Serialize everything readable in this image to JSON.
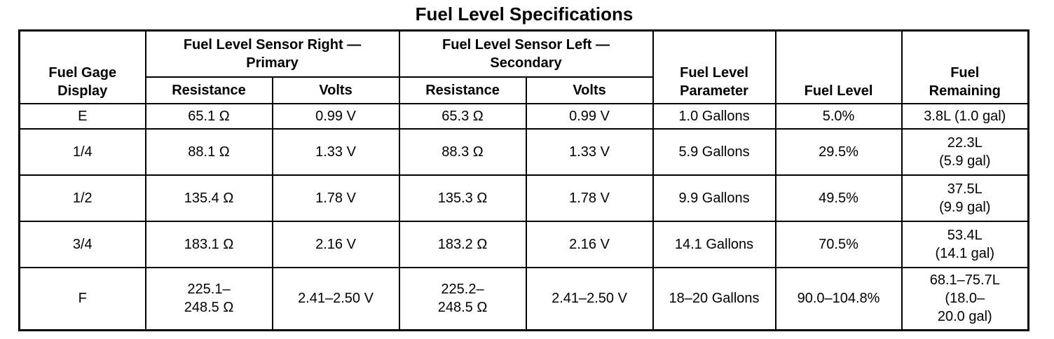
{
  "title": "Fuel Level Specifications",
  "headers": {
    "display": "Fuel Gage\nDisplay",
    "sensor_right": "Fuel Level Sensor Right —\nPrimary",
    "sensor_left": "Fuel Level Sensor Left —\nSecondary",
    "parameter": "Fuel Level\nParameter",
    "level": "Fuel Level",
    "remaining": "Fuel\nRemaining",
    "resistance": "Resistance",
    "volts": "Volts"
  },
  "rows": [
    {
      "display": "E",
      "right_resistance": "65.1 Ω",
      "right_volts": "0.99 V",
      "left_resistance": "65.3 Ω",
      "left_volts": "0.99 V",
      "parameter": "1.0 Gallons",
      "level": "5.0%",
      "remaining": "3.8L (1.0 gal)"
    },
    {
      "display": "1/4",
      "right_resistance": "88.1 Ω",
      "right_volts": "1.33 V",
      "left_resistance": "88.3 Ω",
      "left_volts": "1.33 V",
      "parameter": "5.9 Gallons",
      "level": "29.5%",
      "remaining": "22.3L\n(5.9 gal)"
    },
    {
      "display": "1/2",
      "right_resistance": "135.4 Ω",
      "right_volts": "1.78 V",
      "left_resistance": "135.3 Ω",
      "left_volts": "1.78 V",
      "parameter": "9.9 Gallons",
      "level": "49.5%",
      "remaining": "37.5L\n(9.9 gal)"
    },
    {
      "display": "3/4",
      "right_resistance": "183.1 Ω",
      "right_volts": "2.16 V",
      "left_resistance": "183.2 Ω",
      "left_volts": "2.16 V",
      "parameter": "14.1 Gallons",
      "level": "70.5%",
      "remaining": "53.4L\n(14.1 gal)"
    },
    {
      "display": "F",
      "right_resistance": "225.1–\n248.5 Ω",
      "right_volts": "2.41–2.50 V",
      "left_resistance": "225.2–\n248.5 Ω",
      "left_volts": "2.41–2.50 V",
      "parameter": "18–20 Gallons",
      "level": "90.0–104.8%",
      "remaining": "68.1–75.7L\n(18.0–\n20.0 gal)"
    }
  ]
}
